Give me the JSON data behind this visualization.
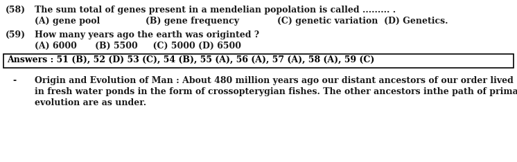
{
  "bg_color": "#ffffff",
  "text_color": "#1a1a1a",
  "bold_color": "#000000",
  "q58_num": "(58)",
  "q58_text": "The sum total of genes present in a mendelian popolation is called ......... .",
  "q58_A": "(A) gene pool",
  "q58_B": "(B) gene frequency",
  "q58_C": "(C) genetic variation  (D) Genetics.",
  "q59_num": "(59)",
  "q59_text": "How many years ago the earth was originted ?",
  "q59_opts": "(A) 6000      (B) 5500     (C) 5000 (D) 6500",
  "answers_text": "Answers : 51 (B), 52 (D) 53 (C), 54 (B), 55 (A), 56 (A), 57 (A), 58 (A), 59 (C)",
  "dash": "-",
  "para_line1": "Origin and Evolution of Man : About 480 million years ago our distant ancestors of our order lived",
  "para_line2": "in fresh water ponds in the form of crossopterygian fishes. The other ancestors inthe path of primates",
  "para_line3": "evolution are as under.",
  "font_family": "DejaVu Serif",
  "fs_main": 9.0,
  "fs_bold": 9.0
}
